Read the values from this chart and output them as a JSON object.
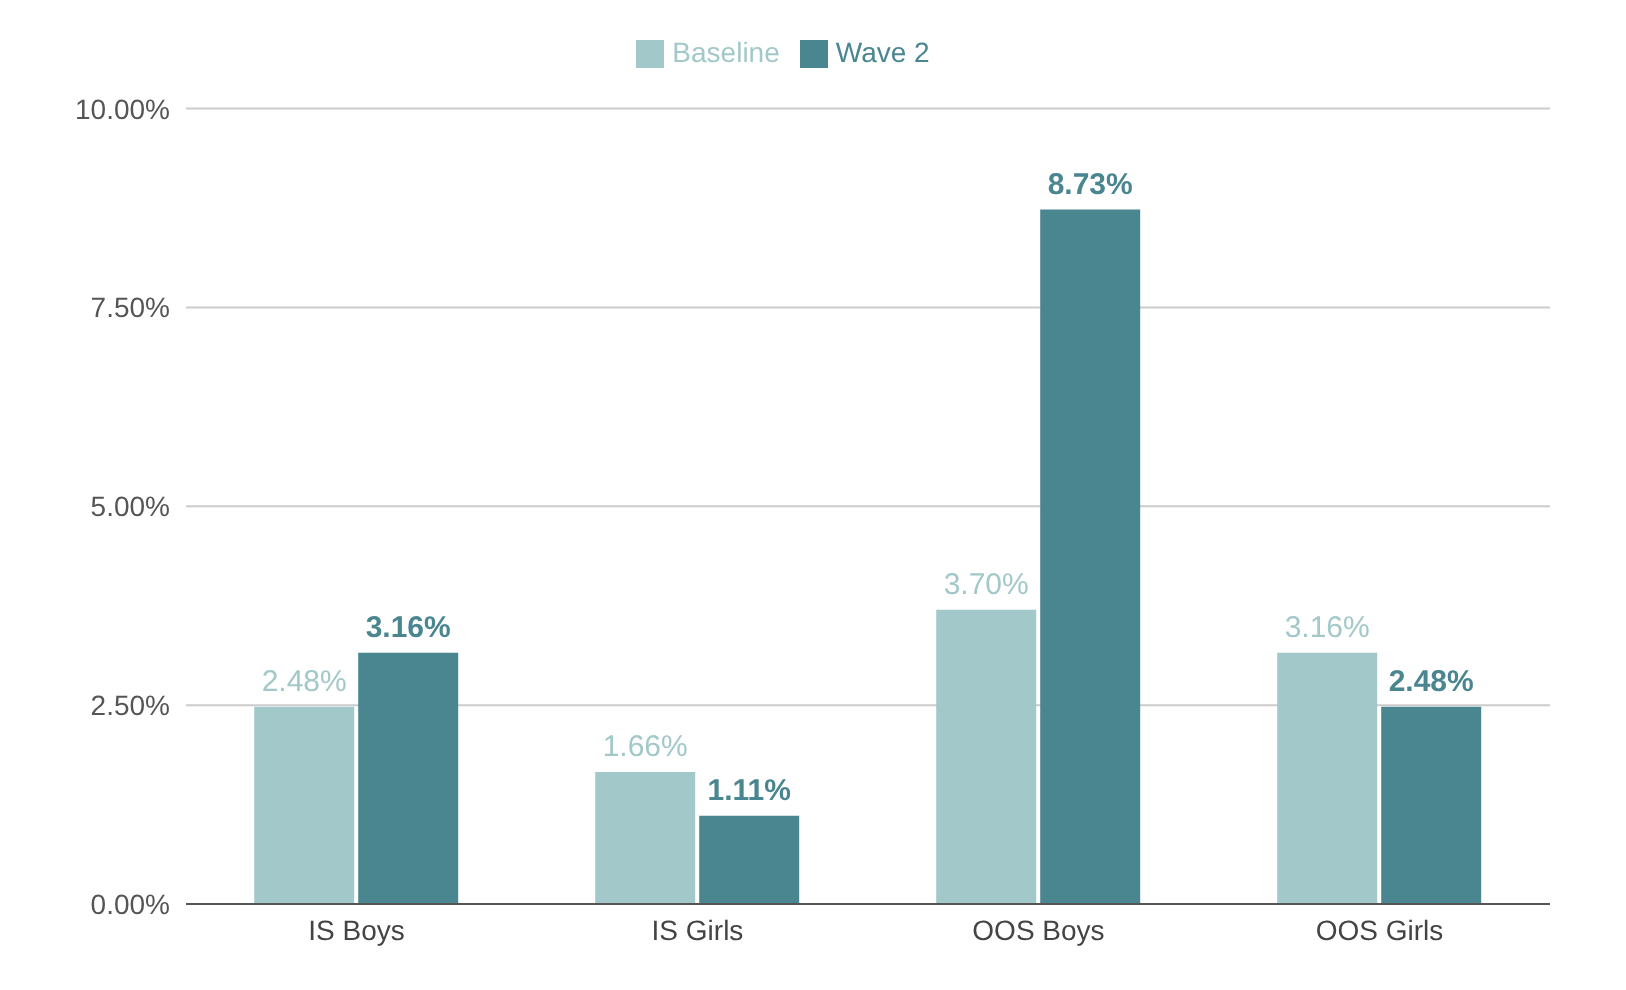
{
  "chart_data": {
    "type": "bar",
    "categories": [
      "IS Boys",
      "IS Girls",
      "OOS Boys",
      "OOS Girls"
    ],
    "series": [
      {
        "name": "Baseline",
        "color": "#a3c8c9",
        "values": [
          2.48,
          1.66,
          3.7,
          3.16
        ],
        "value_labels": [
          "2.48%",
          "1.66%",
          "3.70%",
          "3.16%"
        ]
      },
      {
        "name": "Wave 2",
        "color": "#4a8690",
        "values": [
          3.16,
          1.11,
          8.73,
          2.48
        ],
        "value_labels": [
          "3.16%",
          "1.11%",
          "8.73%",
          "2.48%"
        ]
      }
    ],
    "ylim": [
      0,
      10
    ],
    "yticks": [
      {
        "value": 0,
        "label": "0.00%"
      },
      {
        "value": 2.5,
        "label": "2.50%"
      },
      {
        "value": 5,
        "label": "5.00%"
      },
      {
        "value": 7.5,
        "label": "7.50%"
      },
      {
        "value": 10,
        "label": "10.00%"
      }
    ],
    "grid": "y",
    "legend": "top"
  }
}
